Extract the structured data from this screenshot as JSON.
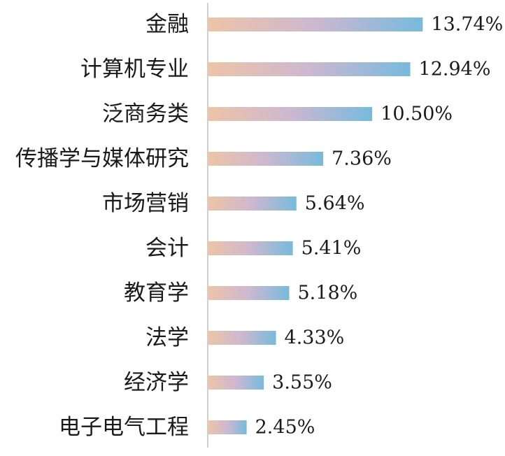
{
  "chart_data": {
    "type": "bar",
    "orientation": "horizontal",
    "categories": [
      "金融",
      "计算机专业",
      "泛商务类",
      "传播学与媒体研究",
      "市场营销",
      "会计",
      "教育学",
      "法学",
      "经济学",
      "电子电气工程"
    ],
    "values": [
      13.74,
      12.94,
      10.5,
      7.36,
      5.64,
      5.41,
      5.18,
      4.33,
      3.55,
      2.45
    ],
    "value_labels": [
      "13.74%",
      "12.94%",
      "10.50%",
      "7.36%",
      "5.64%",
      "5.41%",
      "5.18%",
      "4.33%",
      "3.55%",
      "2.45%"
    ],
    "unit": "%",
    "title": "",
    "xlabel": "",
    "ylabel": "",
    "xlim": [
      0,
      16
    ],
    "grid": false,
    "legend": "none",
    "colors": {
      "gradient_start": "#ecc4a6",
      "gradient_mid": "#cdb8d0",
      "gradient_end": "#77badc",
      "axis": "#bfbfbf",
      "text": "#1a1a1a"
    }
  }
}
